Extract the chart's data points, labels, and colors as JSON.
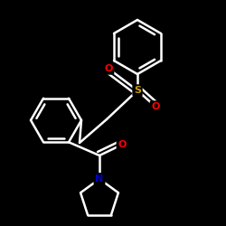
{
  "background_color": "#000000",
  "bond_color": "#ffffff",
  "atom_colors": {
    "S": "#c8a000",
    "O": "#ff0000",
    "N": "#0000cd",
    "C": "#ffffff"
  },
  "bond_width": 1.8,
  "figsize": [
    2.5,
    2.5
  ],
  "dpi": 100,
  "xlim": [
    0,
    250
  ],
  "ylim": [
    0,
    250
  ]
}
